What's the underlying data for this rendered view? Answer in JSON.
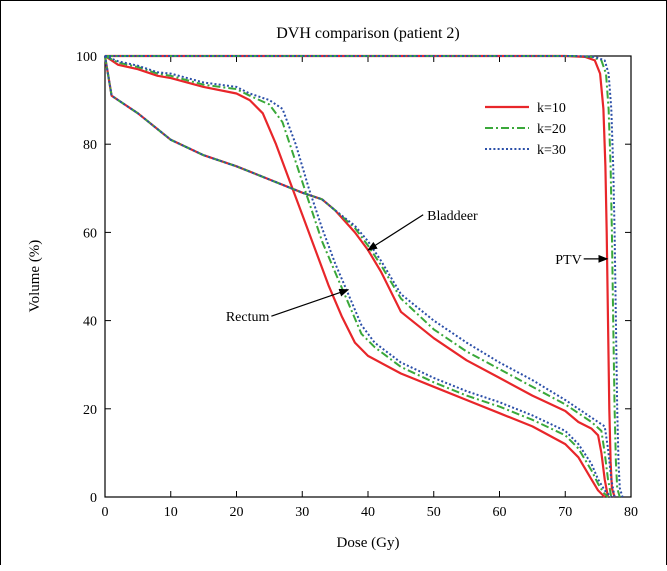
{
  "chart_data": {
    "type": "line",
    "title": "DVH comparison (patient 2)",
    "xlabel": "Dose (Gy)",
    "ylabel": "Volume (%)",
    "xlim": [
      0,
      80
    ],
    "ylim": [
      0,
      100
    ],
    "xticks": [
      0,
      10,
      20,
      30,
      40,
      50,
      60,
      70,
      80
    ],
    "yticks": [
      0,
      20,
      40,
      60,
      80,
      100
    ],
    "grid": false,
    "legend_position": "top-right",
    "series": [
      {
        "name": "k=10",
        "color": "#e8262a",
        "dash": "solid",
        "curves": {
          "PTV": [
            [
              0,
              100
            ],
            [
              70,
              100
            ],
            [
              73,
              99.8
            ],
            [
              74.5,
              99
            ],
            [
              75.3,
              96
            ],
            [
              75.8,
              88
            ],
            [
              76.1,
              75
            ],
            [
              76.3,
              60
            ],
            [
              76.5,
              40
            ],
            [
              76.7,
              20
            ],
            [
              76.9,
              8
            ],
            [
              77.1,
              2
            ],
            [
              77.5,
              0
            ]
          ],
          "Bladder": [
            [
              0,
              100
            ],
            [
              1,
              91
            ],
            [
              3,
              89
            ],
            [
              5,
              87
            ],
            [
              10,
              81
            ],
            [
              15,
              77.5
            ],
            [
              20,
              75
            ],
            [
              25,
              72
            ],
            [
              30,
              69
            ],
            [
              33,
              67.5
            ],
            [
              35,
              65
            ],
            [
              38,
              60
            ],
            [
              40,
              56
            ],
            [
              42,
              51
            ],
            [
              45,
              42
            ],
            [
              50,
              36
            ],
            [
              55,
              31
            ],
            [
              60,
              27
            ],
            [
              65,
              23
            ],
            [
              70,
              19.5
            ],
            [
              72,
              17
            ],
            [
              74,
              15.5
            ],
            [
              75,
              14
            ],
            [
              75.5,
              10
            ],
            [
              76,
              4
            ],
            [
              76.5,
              0
            ]
          ],
          "Rectum": [
            [
              0,
              100
            ],
            [
              2,
              98
            ],
            [
              5,
              97
            ],
            [
              8,
              95.5
            ],
            [
              10,
              95
            ],
            [
              15,
              93
            ],
            [
              20,
              91.5
            ],
            [
              22,
              90
            ],
            [
              24,
              87
            ],
            [
              26,
              80
            ],
            [
              28,
              72
            ],
            [
              30,
              64
            ],
            [
              32,
              56
            ],
            [
              34,
              48
            ],
            [
              36,
              41
            ],
            [
              38,
              35
            ],
            [
              40,
              32
            ],
            [
              45,
              28
            ],
            [
              50,
              25
            ],
            [
              55,
              22
            ],
            [
              60,
              19
            ],
            [
              65,
              16
            ],
            [
              70,
              12
            ],
            [
              72,
              9
            ],
            [
              74,
              4
            ],
            [
              75,
              1.5
            ],
            [
              76,
              0
            ]
          ]
        }
      },
      {
        "name": "k=20",
        "color": "#3aa83a",
        "dash": "dashdot",
        "curves": {
          "PTV": [
            [
              0,
              100
            ],
            [
              71,
              100
            ],
            [
              74,
              99.8
            ],
            [
              75.5,
              99
            ],
            [
              76.2,
              96
            ],
            [
              76.6,
              88
            ],
            [
              76.9,
              75
            ],
            [
              77.1,
              60
            ],
            [
              77.3,
              40
            ],
            [
              77.5,
              20
            ],
            [
              77.7,
              8
            ],
            [
              77.9,
              2
            ],
            [
              78.3,
              0
            ]
          ],
          "Bladder": [
            [
              0,
              100
            ],
            [
              1,
              91
            ],
            [
              3,
              89
            ],
            [
              5,
              87
            ],
            [
              10,
              81
            ],
            [
              15,
              77.5
            ],
            [
              20,
              75
            ],
            [
              25,
              72
            ],
            [
              30,
              69
            ],
            [
              33,
              67.5
            ],
            [
              35,
              65
            ],
            [
              38,
              61
            ],
            [
              40,
              57
            ],
            [
              42,
              52.5
            ],
            [
              45,
              45
            ],
            [
              50,
              38
            ],
            [
              55,
              33
            ],
            [
              60,
              29
            ],
            [
              65,
              25
            ],
            [
              70,
              21
            ],
            [
              72,
              19
            ],
            [
              74,
              17
            ],
            [
              75.5,
              15
            ],
            [
              76,
              10
            ],
            [
              76.5,
              4
            ],
            [
              77,
              0
            ]
          ],
          "Rectum": [
            [
              0,
              100
            ],
            [
              2,
              98.5
            ],
            [
              5,
              97.5
            ],
            [
              8,
              96
            ],
            [
              10,
              95.5
            ],
            [
              15,
              93.5
            ],
            [
              20,
              92.5
            ],
            [
              22,
              91
            ],
            [
              25,
              89
            ],
            [
              27,
              85
            ],
            [
              29,
              76
            ],
            [
              31,
              67
            ],
            [
              33,
              58
            ],
            [
              35,
              51
            ],
            [
              37,
              44
            ],
            [
              39,
              37
            ],
            [
              41,
              34
            ],
            [
              45,
              29.5
            ],
            [
              50,
              26
            ],
            [
              55,
              23
            ],
            [
              60,
              20.5
            ],
            [
              65,
              17.5
            ],
            [
              70,
              14
            ],
            [
              72,
              11
            ],
            [
              74,
              6
            ],
            [
              75,
              3
            ],
            [
              75.8,
              1
            ],
            [
              76.5,
              0
            ]
          ]
        }
      },
      {
        "name": "k=30",
        "color": "#2b4fa8",
        "dash": "dotted",
        "curves": {
          "PTV": [
            [
              0,
              100
            ],
            [
              71.5,
              100
            ],
            [
              74.5,
              99.8
            ],
            [
              76,
              99
            ],
            [
              76.6,
              96
            ],
            [
              77,
              88
            ],
            [
              77.3,
              75
            ],
            [
              77.5,
              60
            ],
            [
              77.7,
              40
            ],
            [
              77.9,
              20
            ],
            [
              78.1,
              8
            ],
            [
              78.3,
              2
            ],
            [
              78.7,
              0
            ]
          ],
          "Bladder": [
            [
              0,
              100
            ],
            [
              1,
              91
            ],
            [
              3,
              89
            ],
            [
              5,
              87
            ],
            [
              10,
              81
            ],
            [
              15,
              77.5
            ],
            [
              20,
              75
            ],
            [
              25,
              72
            ],
            [
              30,
              69
            ],
            [
              33,
              67.5
            ],
            [
              35,
              65
            ],
            [
              38,
              61.5
            ],
            [
              40,
              58
            ],
            [
              42,
              53.5
            ],
            [
              45,
              46
            ],
            [
              50,
              40
            ],
            [
              55,
              35
            ],
            [
              60,
              30.5
            ],
            [
              65,
              26.5
            ],
            [
              70,
              22
            ],
            [
              72,
              20
            ],
            [
              74,
              18
            ],
            [
              76,
              16
            ],
            [
              76.5,
              11
            ],
            [
              77,
              4
            ],
            [
              77.5,
              0
            ]
          ],
          "Rectum": [
            [
              0,
              100
            ],
            [
              2,
              98.8
            ],
            [
              5,
              97.8
            ],
            [
              8,
              96.3
            ],
            [
              10,
              96
            ],
            [
              15,
              94
            ],
            [
              20,
              93
            ],
            [
              22,
              91.5
            ],
            [
              25,
              90
            ],
            [
              27,
              88
            ],
            [
              29,
              80
            ],
            [
              31,
              70
            ],
            [
              33,
              61
            ],
            [
              35,
              53
            ],
            [
              37,
              46
            ],
            [
              39,
              39
            ],
            [
              41,
              35
            ],
            [
              45,
              30.5
            ],
            [
              50,
              27
            ],
            [
              55,
              24
            ],
            [
              60,
              21.5
            ],
            [
              65,
              18.5
            ],
            [
              70,
              15
            ],
            [
              72,
              12
            ],
            [
              74,
              7.5
            ],
            [
              75,
              4
            ],
            [
              76,
              1.5
            ],
            [
              77,
              0
            ]
          ]
        }
      }
    ],
    "annotations": [
      {
        "text": "Bladdeer",
        "point": [
          40,
          56
        ],
        "label_at": [
          49,
          64
        ]
      },
      {
        "text": "Rectum",
        "point": [
          37,
          47
        ],
        "label_at": [
          25,
          41
        ]
      },
      {
        "text": "PTV",
        "point": [
          76.4,
          54
        ],
        "label_at": [
          72.5,
          54
        ]
      }
    ]
  }
}
